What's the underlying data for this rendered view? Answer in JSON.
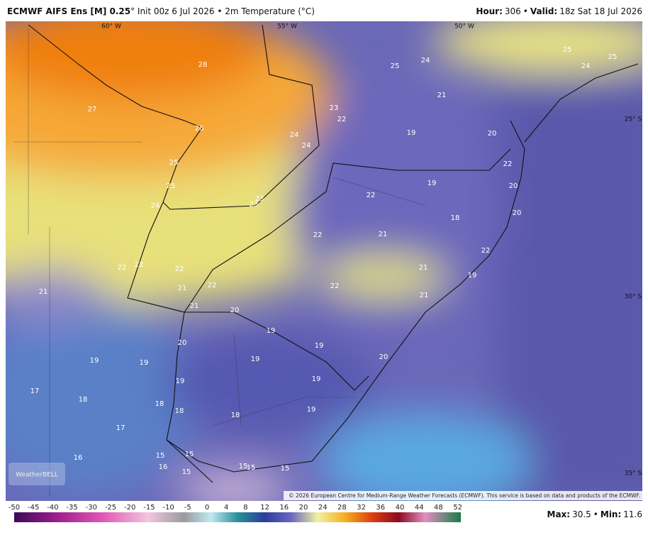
{
  "header": {
    "model": "ECMWF AIFS Ens [M] 0.25",
    "details": "° Init 00z 6 Jul 2026 • 2m Temperature (°C)",
    "hour_label": "Hour:",
    "hour": 306,
    "separator": "•",
    "valid_label": "Valid:",
    "valid": "18z Sat 18 Jul 2026"
  },
  "map": {
    "longitudes": [
      "60° W",
      "55° W",
      "50° W"
    ],
    "latitudes": [
      "25° S",
      "30° S",
      "35° S"
    ],
    "contour_labels": [
      28,
      27,
      26,
      25,
      25,
      24,
      23,
      22,
      24,
      24,
      21,
      19,
      20,
      22,
      19,
      20,
      22,
      23,
      23,
      20,
      18,
      22,
      21,
      22,
      19,
      22,
      22,
      22,
      21,
      22,
      21,
      22,
      21,
      21,
      21,
      20,
      19,
      19,
      20,
      20,
      19,
      19,
      19,
      19,
      19,
      17,
      18,
      18,
      18,
      18,
      19,
      17,
      16,
      15,
      15,
      16,
      15,
      15,
      15,
      15,
      25,
      25,
      24,
      25,
      24
    ],
    "logo": "WeatherBELL",
    "copyright": "© 2026 European Centre for Medium-Range Weather Forecasts (ECMWF). This service is based on data and products of the ECMWF."
  },
  "colorbar": {
    "ticks": [
      -50,
      -45,
      -40,
      -35,
      -30,
      -25,
      -20,
      -15,
      -10,
      -5,
      0,
      4,
      8,
      12,
      16,
      20,
      24,
      28,
      32,
      36,
      40,
      44,
      48,
      52
    ]
  },
  "footer": {
    "max_label": "Max:",
    "max": 30.5,
    "separator": "•",
    "min_label": "Min:",
    "min": 11.6
  }
}
